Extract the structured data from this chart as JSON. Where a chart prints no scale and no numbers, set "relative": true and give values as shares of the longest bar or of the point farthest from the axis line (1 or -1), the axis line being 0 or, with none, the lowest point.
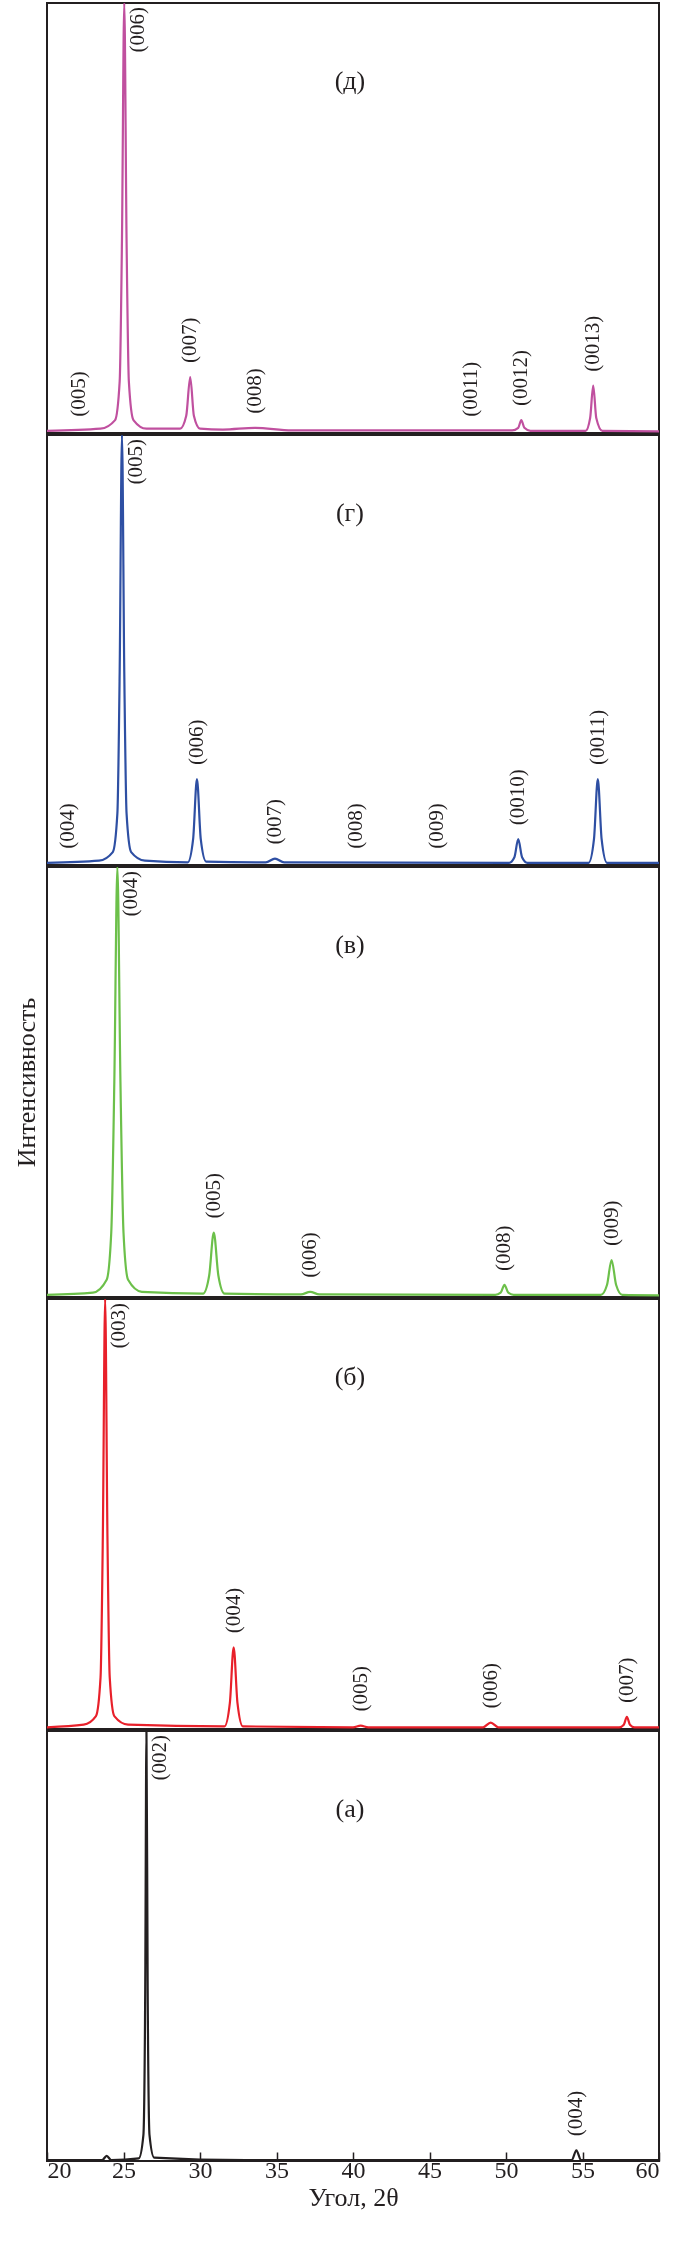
{
  "chart_data": [
    {
      "type": "line",
      "title": "(д)",
      "relative": true,
      "color": "#c0509f",
      "xlim": [
        20,
        60
      ],
      "xticks": [
        20,
        25,
        30,
        35,
        40,
        45,
        50,
        55,
        60
      ],
      "tick_labels": false,
      "x": [
        20,
        23.5,
        24.45,
        24.75,
        24.9,
        25.05,
        25.2,
        25.35,
        25.65,
        26.5,
        28.7,
        29.1,
        29.36,
        29.6,
        30.0,
        31.5,
        33.6,
        36,
        50.4,
        50.8,
        51.0,
        51.2,
        51.6,
        55.2,
        55.5,
        55.7,
        55.9,
        56.3,
        60
      ],
      "values": [
        0.005,
        0.01,
        0.03,
        0.12,
        0.45,
        1,
        0.45,
        0.12,
        0.03,
        0.01,
        0.01,
        0.04,
        0.13,
        0.04,
        0.01,
        0.008,
        0.012,
        0.006,
        0.006,
        0.012,
        0.03,
        0.012,
        0.005,
        0.005,
        0.035,
        0.11,
        0.035,
        0.005,
        0.004
      ],
      "annotations": [
        {
          "text": "(005)",
          "x": 22.1,
          "y": 0.005
        },
        {
          "text": "(006)",
          "x": 25.05,
          "y": 1
        },
        {
          "text": "(007)",
          "x": 29.36,
          "y": 0.13
        },
        {
          "text": "(008)",
          "x": 33.6,
          "y": 0.012
        },
        {
          "text": "(0011)",
          "x": 47.7,
          "y": 0.005
        },
        {
          "text": "(0012)",
          "x": 51.0,
          "y": 0.03
        },
        {
          "text": "(0013)",
          "x": 55.7,
          "y": 0.11
        }
      ]
    },
    {
      "type": "line",
      "title": "(г)",
      "relative": true,
      "color": "#2e4fa3",
      "xlim": [
        20,
        60
      ],
      "xticks": [
        20,
        25,
        30,
        35,
        40,
        45,
        50,
        55,
        60
      ],
      "tick_labels": false,
      "x": [
        20,
        23.4,
        24.3,
        24.6,
        24.75,
        24.9,
        25.05,
        25.2,
        25.5,
        26.4,
        29.2,
        29.55,
        29.8,
        30.05,
        30.4,
        34.3,
        34.9,
        35.5,
        50.2,
        50.55,
        50.8,
        51.05,
        51.4,
        55.4,
        55.75,
        56.0,
        56.25,
        56.6,
        60
      ],
      "values": [
        0.005,
        0.01,
        0.03,
        0.12,
        0.45,
        1,
        0.45,
        0.12,
        0.03,
        0.01,
        0.006,
        0.06,
        0.2,
        0.06,
        0.008,
        0.006,
        0.015,
        0.006,
        0.005,
        0.018,
        0.06,
        0.018,
        0.005,
        0.005,
        0.06,
        0.2,
        0.06,
        0.005,
        0.005
      ],
      "annotations": [
        {
          "text": "(004)",
          "x": 21.4,
          "y": 0.005
        },
        {
          "text": "(005)",
          "x": 24.9,
          "y": 1
        },
        {
          "text": "(006)",
          "x": 29.8,
          "y": 0.2
        },
        {
          "text": "(007)",
          "x": 34.9,
          "y": 0.015
        },
        {
          "text": "(008)",
          "x": 40.2,
          "y": 0.005
        },
        {
          "text": "(009)",
          "x": 45.5,
          "y": 0.005
        },
        {
          "text": "(0010)",
          "x": 50.8,
          "y": 0.06
        },
        {
          "text": "(0011)",
          "x": 56.0,
          "y": 0.2
        }
      ]
    },
    {
      "type": "line",
      "title": "(в)",
      "relative": true,
      "color": "#6cc04a",
      "xlim": [
        20,
        60
      ],
      "xticks": [
        20,
        25,
        30,
        35,
        40,
        45,
        50,
        55,
        60
      ],
      "tick_labels": false,
      "ylabel": "Интенсивность",
      "x": [
        20,
        23.0,
        23.9,
        24.2,
        24.4,
        24.6,
        24.8,
        25.0,
        25.3,
        26.2,
        30.2,
        30.6,
        30.9,
        31.2,
        31.6,
        36.6,
        37.2,
        37.8,
        49.3,
        49.65,
        49.9,
        50.15,
        50.5,
        56.2,
        56.6,
        56.9,
        57.2,
        57.6,
        60
      ],
      "values": [
        0.005,
        0.01,
        0.04,
        0.15,
        0.5,
        1,
        0.5,
        0.15,
        0.04,
        0.012,
        0.008,
        0.05,
        0.15,
        0.05,
        0.008,
        0.006,
        0.012,
        0.006,
        0.005,
        0.01,
        0.028,
        0.01,
        0.005,
        0.005,
        0.028,
        0.086,
        0.028,
        0.005,
        0.004
      ],
      "annotations": [
        {
          "text": "(004)",
          "x": 24.6,
          "y": 1
        },
        {
          "text": "(005)",
          "x": 30.9,
          "y": 0.15
        },
        {
          "text": "(006)",
          "x": 37.2,
          "y": 0.012
        },
        {
          "text": "(008)",
          "x": 49.9,
          "y": 0.028
        },
        {
          "text": "(009)",
          "x": 56.9,
          "y": 0.086
        }
      ]
    },
    {
      "type": "line",
      "title": "(б)",
      "relative": true,
      "color": "#e8202a",
      "xlim": [
        20,
        60
      ],
      "xticks": [
        20,
        25,
        30,
        35,
        40,
        45,
        50,
        55,
        60
      ],
      "tick_labels": false,
      "x": [
        20,
        22.4,
        23.2,
        23.5,
        23.65,
        23.8,
        23.95,
        24.1,
        24.4,
        25.3,
        31.6,
        31.95,
        32.2,
        32.45,
        32.8,
        40.0,
        40.5,
        41.0,
        48.5,
        49.0,
        49.5,
        57.4,
        57.7,
        57.9,
        58.1,
        58.4,
        60
      ],
      "values": [
        0.004,
        0.01,
        0.03,
        0.12,
        0.45,
        1,
        0.45,
        0.12,
        0.03,
        0.01,
        0.006,
        0.06,
        0.19,
        0.06,
        0.006,
        0.004,
        0.008,
        0.004,
        0.004,
        0.015,
        0.004,
        0.004,
        0.01,
        0.028,
        0.01,
        0.004,
        0.004
      ],
      "annotations": [
        {
          "text": "(003)",
          "x": 23.8,
          "y": 1
        },
        {
          "text": "(004)",
          "x": 32.2,
          "y": 0.19
        },
        {
          "text": "(005)",
          "x": 40.5,
          "y": 0.008
        },
        {
          "text": "(006)",
          "x": 49.0,
          "y": 0.015
        },
        {
          "text": "(007)",
          "x": 57.9,
          "y": 0.028
        }
      ]
    },
    {
      "type": "line",
      "title": "(а)",
      "relative": true,
      "color": "#231f20",
      "xlim": [
        20,
        60
      ],
      "xticks": [
        20,
        25,
        30,
        35,
        40,
        45,
        50,
        55,
        60
      ],
      "tick_labels": "x",
      "xlabel": "Угол, 2θ",
      "x": [
        20,
        23.6,
        23.9,
        24.2,
        26.0,
        26.3,
        26.42,
        26.5,
        26.58,
        26.7,
        27.0,
        33,
        54.3,
        54.6,
        54.9,
        60
      ],
      "values": [
        0.002,
        0.002,
        0.012,
        0.002,
        0.006,
        0.06,
        0.4,
        1,
        0.4,
        0.06,
        0.008,
        0.002,
        0.002,
        0.025,
        0.002,
        0.002
      ],
      "annotations": [
        {
          "text": "(002)",
          "x": 26.5,
          "y": 1
        },
        {
          "text": "(004)",
          "x": 54.6,
          "y": 0.025
        }
      ]
    }
  ]
}
